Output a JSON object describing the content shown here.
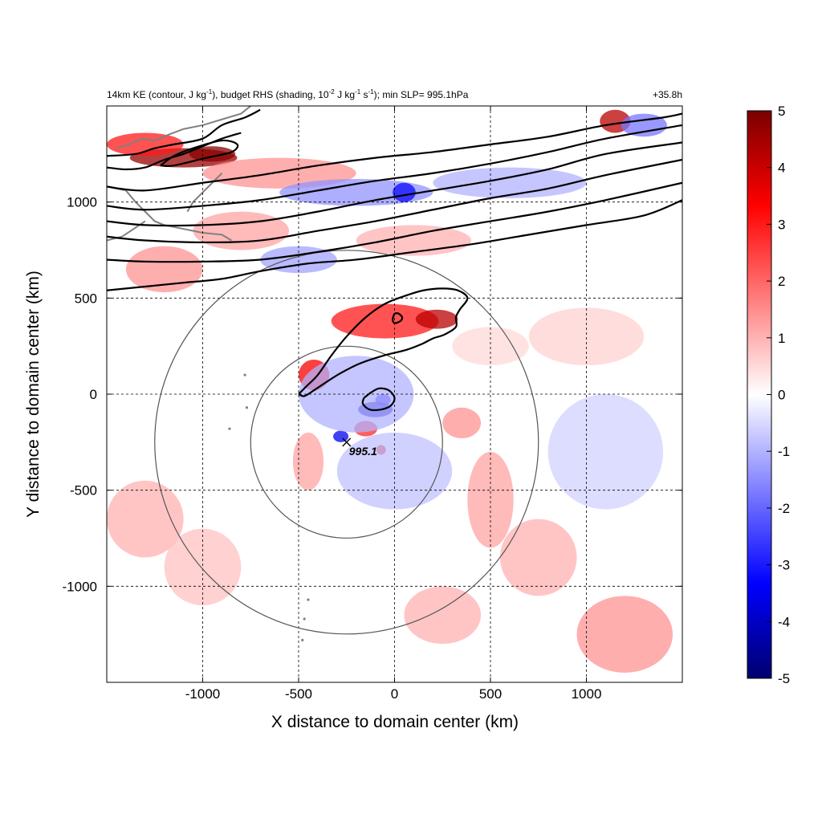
{
  "chart_data": {
    "type": "heatmap",
    "title_left": "14km KE (contour, J kg-1), budget RHS (shading, 10-2 J kg-1 s-1); min SLP= 995.1hPa",
    "title_parts": {
      "pre": "14km KE (contour, J kg",
      "sup1": "-1",
      "mid1": "), budget RHS (shading, 10",
      "sup2": "-2",
      "mid2": " J kg",
      "sup3": "-1",
      "mid3": " s",
      "sup4": "-1",
      "post": "); min SLP= 995.1hPa"
    },
    "title_right": "+35.8h",
    "xlabel": "X distance to domain center (km)",
    "ylabel": "Y distance to domain center (km)",
    "xlim": [
      -1500,
      1500
    ],
    "ylim": [
      -1500,
      1500
    ],
    "xticks": [
      -1000,
      -500,
      0,
      500,
      1000
    ],
    "yticks": [
      -1000,
      -500,
      0,
      500,
      1000
    ],
    "grid": true,
    "colorbar": {
      "range": [
        -5,
        5
      ],
      "ticks": [
        5,
        4,
        3,
        2,
        1,
        0,
        -1,
        -2,
        -3,
        -4,
        -5
      ],
      "colors": [
        "#00006e",
        "#0000ff",
        "#7f7fff",
        "#ffffff",
        "#ff7f7f",
        "#ff0000",
        "#7a0000"
      ]
    },
    "storm_center": {
      "x": -250,
      "y": -250,
      "label": "995.1"
    },
    "range_rings_km": [
      500,
      1000
    ],
    "shading_features": [
      {
        "x": -50,
        "y": 380,
        "sx": 280,
        "sy": 90,
        "value": 3.0
      },
      {
        "x": 220,
        "y": 390,
        "sx": 110,
        "sy": 50,
        "value": 4.2
      },
      {
        "x": -420,
        "y": 100,
        "sx": 80,
        "sy": 80,
        "value": 3.4
      },
      {
        "x": -100,
        "y": -80,
        "sx": 90,
        "sy": 40,
        "value": -4.0
      },
      {
        "x": -60,
        "y": -30,
        "sx": 40,
        "sy": 30,
        "value": -3.0
      },
      {
        "x": -150,
        "y": -180,
        "sx": 60,
        "sy": 40,
        "value": 2.8
      },
      {
        "x": -70,
        "y": -290,
        "sx": 25,
        "sy": 25,
        "value": 4.0
      },
      {
        "x": -280,
        "y": -220,
        "sx": 40,
        "sy": 30,
        "value": -3.5
      },
      {
        "x": -200,
        "y": 0,
        "sx": 300,
        "sy": 200,
        "value": -1.0
      },
      {
        "x": 0,
        "y": -400,
        "sx": 300,
        "sy": 200,
        "value": -0.8
      },
      {
        "x": -1100,
        "y": 1230,
        "sx": 280,
        "sy": 50,
        "value": 4.6
      },
      {
        "x": -950,
        "y": 1250,
        "sx": 120,
        "sy": 40,
        "value": 4.8
      },
      {
        "x": -1300,
        "y": 1300,
        "sx": 200,
        "sy": 60,
        "value": 3.0
      },
      {
        "x": -600,
        "y": 1150,
        "sx": 400,
        "sy": 80,
        "value": 1.4
      },
      {
        "x": -200,
        "y": 1050,
        "sx": 400,
        "sy": 70,
        "value": -1.4
      },
      {
        "x": 50,
        "y": 1050,
        "sx": 60,
        "sy": 50,
        "value": -3.2
      },
      {
        "x": 1150,
        "y": 1420,
        "sx": 80,
        "sy": 60,
        "value": 4.2
      },
      {
        "x": 1300,
        "y": 1400,
        "sx": 120,
        "sy": 60,
        "value": -1.8
      },
      {
        "x": -1200,
        "y": 650,
        "sx": 200,
        "sy": 120,
        "value": 1.4
      },
      {
        "x": -800,
        "y": 850,
        "sx": 250,
        "sy": 100,
        "value": 1.2
      },
      {
        "x": -500,
        "y": 700,
        "sx": 200,
        "sy": 70,
        "value": -1.2
      },
      {
        "x": 600,
        "y": 1100,
        "sx": 400,
        "sy": 80,
        "value": -1.0
      },
      {
        "x": 500,
        "y": -550,
        "sx": 120,
        "sy": 250,
        "value": 1.2
      },
      {
        "x": 750,
        "y": -850,
        "sx": 200,
        "sy": 200,
        "value": 1.0
      },
      {
        "x": 1200,
        "y": -1250,
        "sx": 250,
        "sy": 200,
        "value": 1.4
      },
      {
        "x": -1300,
        "y": -650,
        "sx": 200,
        "sy": 200,
        "value": 1.0
      },
      {
        "x": -1000,
        "y": -900,
        "sx": 200,
        "sy": 200,
        "value": 0.8
      },
      {
        "x": 250,
        "y": -1150,
        "sx": 200,
        "sy": 150,
        "value": 1.0
      },
      {
        "x": 1100,
        "y": -300,
        "sx": 300,
        "sy": 300,
        "value": -0.6
      },
      {
        "x": 1000,
        "y": 300,
        "sx": 300,
        "sy": 150,
        "value": 0.6
      },
      {
        "x": 350,
        "y": -150,
        "sx": 100,
        "sy": 80,
        "value": 1.4
      },
      {
        "x": -450,
        "y": -350,
        "sx": 80,
        "sy": 150,
        "value": 1.2
      },
      {
        "x": 100,
        "y": 800,
        "sx": 300,
        "sy": 80,
        "value": 1.0
      },
      {
        "x": 500,
        "y": 250,
        "sx": 200,
        "sy": 100,
        "value": 0.5
      }
    ],
    "ke_contours": [
      [
        [
          -1500,
          1080
        ],
        [
          -1300,
          1060
        ],
        [
          -1000,
          1100
        ],
        [
          -700,
          1140
        ],
        [
          -400,
          1190
        ],
        [
          -100,
          1230
        ],
        [
          200,
          1260
        ],
        [
          500,
          1300
        ],
        [
          800,
          1340
        ],
        [
          1100,
          1400
        ],
        [
          1400,
          1440
        ],
        [
          1500,
          1460
        ]
      ],
      [
        [
          -1500,
          980
        ],
        [
          -1300,
          960
        ],
        [
          -1000,
          980
        ],
        [
          -700,
          1010
        ],
        [
          -400,
          1060
        ],
        [
          -100,
          1110
        ],
        [
          200,
          1150
        ],
        [
          500,
          1200
        ],
        [
          800,
          1260
        ],
        [
          1100,
          1330
        ],
        [
          1500,
          1400
        ]
      ],
      [
        [
          -1500,
          900
        ],
        [
          -1300,
          880
        ],
        [
          -1000,
          880
        ],
        [
          -700,
          900
        ],
        [
          -400,
          950
        ],
        [
          -100,
          1010
        ],
        [
          200,
          1060
        ],
        [
          500,
          1110
        ],
        [
          800,
          1170
        ],
        [
          1100,
          1250
        ],
        [
          1500,
          1310
        ]
      ],
      [
        [
          -1500,
          820
        ],
        [
          -1300,
          800
        ],
        [
          -1000,
          790
        ],
        [
          -700,
          800
        ],
        [
          -400,
          850
        ],
        [
          -100,
          900
        ],
        [
          200,
          960
        ],
        [
          500,
          1020
        ],
        [
          800,
          1070
        ],
        [
          1100,
          1140
        ],
        [
          1500,
          1220
        ]
      ],
      [
        [
          -1500,
          700
        ],
        [
          -1300,
          690
        ],
        [
          -1000,
          690
        ],
        [
          -700,
          700
        ],
        [
          -400,
          740
        ],
        [
          -100,
          790
        ],
        [
          200,
          850
        ],
        [
          500,
          900
        ],
        [
          800,
          950
        ],
        [
          1100,
          1010
        ],
        [
          1500,
          1100
        ]
      ],
      [
        [
          -1500,
          540
        ],
        [
          -1300,
          560
        ],
        [
          -1100,
          580
        ],
        [
          -900,
          600
        ],
        [
          -700,
          640
        ],
        [
          -450,
          680
        ],
        [
          -200,
          700
        ],
        [
          100,
          740
        ],
        [
          400,
          780
        ],
        [
          700,
          830
        ],
        [
          1000,
          880
        ],
        [
          1300,
          930
        ],
        [
          1500,
          1010
        ]
      ],
      [
        [
          -1500,
          1240
        ],
        [
          -1350,
          1250
        ],
        [
          -1250,
          1280
        ],
        [
          -1150,
          1300
        ],
        [
          -1000,
          1330
        ],
        [
          -900,
          1400
        ],
        [
          -780,
          1440
        ],
        [
          -700,
          1480
        ]
      ],
      [
        [
          -1500,
          1180
        ],
        [
          -1400,
          1170
        ],
        [
          -1300,
          1180
        ],
        [
          -1200,
          1220
        ],
        [
          -1100,
          1250
        ],
        [
          -1000,
          1290
        ],
        [
          -900,
          1330
        ],
        [
          -800,
          1360
        ]
      ],
      [
        [
          -1220,
          1190
        ],
        [
          -1150,
          1240
        ],
        [
          -1050,
          1280
        ],
        [
          -900,
          1320
        ],
        [
          -820,
          1300
        ],
        [
          -850,
          1260
        ],
        [
          -980,
          1230
        ],
        [
          -1150,
          1190
        ],
        [
          -1220,
          1190
        ]
      ],
      [
        [
          -500,
          0
        ],
        [
          -460,
          40
        ],
        [
          -400,
          100
        ],
        [
          -330,
          200
        ],
        [
          -250,
          300
        ],
        [
          -150,
          400
        ],
        [
          -50,
          470
        ],
        [
          50,
          510
        ],
        [
          150,
          540
        ],
        [
          250,
          550
        ],
        [
          330,
          540
        ],
        [
          380,
          500
        ],
        [
          340,
          440
        ],
        [
          320,
          400
        ],
        [
          320,
          350
        ],
        [
          260,
          310
        ],
        [
          200,
          290
        ],
        [
          140,
          260
        ],
        [
          60,
          230
        ],
        [
          -60,
          200
        ],
        [
          -180,
          160
        ],
        [
          -280,
          110
        ],
        [
          -360,
          60
        ],
        [
          -420,
          20
        ],
        [
          -470,
          -10
        ],
        [
          -500,
          0
        ]
      ],
      [
        [
          -160,
          -20
        ],
        [
          -120,
          10
        ],
        [
          -80,
          30
        ],
        [
          -30,
          20
        ],
        [
          0,
          -20
        ],
        [
          -20,
          -60
        ],
        [
          -70,
          -80
        ],
        [
          -130,
          -80
        ],
        [
          -165,
          -50
        ],
        [
          -160,
          -20
        ]
      ],
      [
        [
          0,
          420
        ],
        [
          20,
          420
        ],
        [
          40,
          400
        ],
        [
          30,
          380
        ],
        [
          0,
          370
        ],
        [
          -10,
          390
        ],
        [
          0,
          420
        ]
      ]
    ],
    "coastline_outlines": [
      [
        [
          -1500,
          1080
        ],
        [
          -1400,
          1060
        ],
        [
          -1350,
          1000
        ],
        [
          -1300,
          950
        ],
        [
          -1250,
          900
        ],
        [
          -1200,
          880
        ],
        [
          -1100,
          860
        ],
        [
          -1000,
          840
        ],
        [
          -900,
          830
        ],
        [
          -850,
          800
        ]
      ],
      [
        [
          -1450,
          1280
        ],
        [
          -1380,
          1300
        ],
        [
          -1320,
          1330
        ],
        [
          -1250,
          1320
        ],
        [
          -1180,
          1350
        ],
        [
          -1100,
          1380
        ],
        [
          -1000,
          1400
        ],
        [
          -900,
          1430
        ],
        [
          -800,
          1460
        ],
        [
          -750,
          1500
        ]
      ],
      [
        [
          -1500,
          800
        ],
        [
          -1420,
          820
        ],
        [
          -1360,
          860
        ],
        [
          -1300,
          900
        ]
      ],
      [
        [
          -900,
          1150
        ],
        [
          -950,
          1100
        ],
        [
          -1000,
          1050
        ],
        [
          -1050,
          1000
        ],
        [
          -1080,
          950
        ]
      ]
    ],
    "island_dots": [
      [
        -450,
        -1070
      ],
      [
        -470,
        -1170
      ],
      [
        -480,
        -1280
      ],
      [
        -770,
        -70
      ],
      [
        -860,
        -180
      ],
      [
        -780,
        100
      ]
    ]
  }
}
